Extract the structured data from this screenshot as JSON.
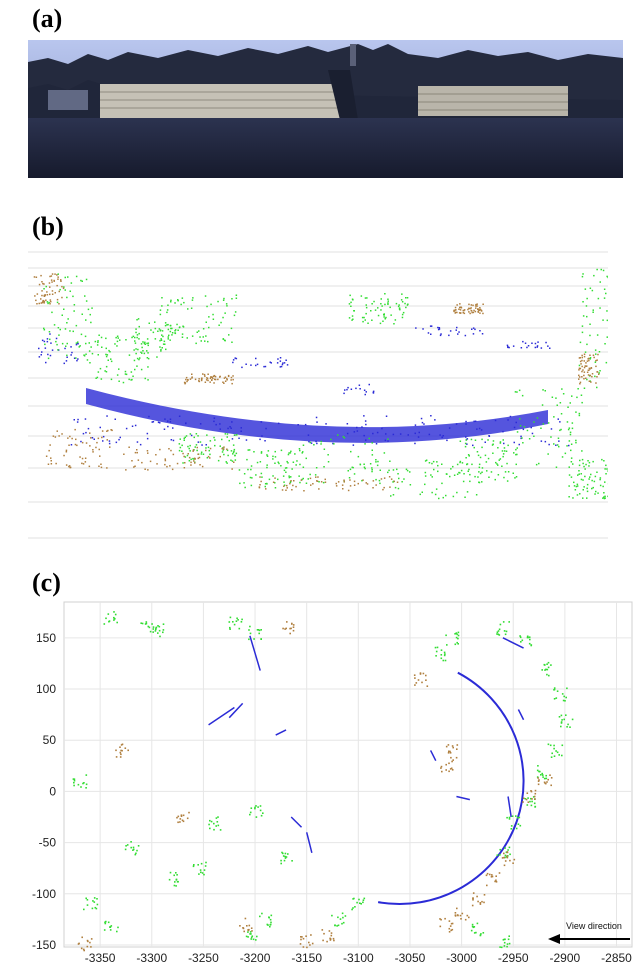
{
  "panels": {
    "a": {
      "label": "(a)"
    },
    "b": {
      "label": "(b)"
    },
    "c": {
      "label": "(c)"
    }
  },
  "colors": {
    "building": "#2b2bd6",
    "vegetation": "#33dd33",
    "ground": "#b08040",
    "sky": "#a8b8e4",
    "treeline": "#1e2438",
    "building_facade": "#c8c4b8"
  },
  "chart_data": {
    "type": "scatter",
    "title": "",
    "xlabel": "",
    "ylabel": "",
    "xlim": [
      -3385,
      -2835
    ],
    "ylim": [
      -152,
      185
    ],
    "xticks": [
      -3350,
      -3300,
      -3250,
      -3200,
      -3150,
      -3100,
      -3050,
      -3000,
      -2950,
      -2900,
      -2850
    ],
    "yticks": [
      150,
      100,
      50,
      0,
      -50,
      -100,
      -150
    ],
    "grid": true,
    "annotation": "View direction",
    "series": [
      {
        "color": "#2b2bd6",
        "arc": {
          "center": [
            -3060,
            10
          ],
          "radius": 120,
          "from_deg": 62,
          "to_deg": -100
        },
        "segments": [
          [
            [
              -3205,
              152
            ],
            [
              -3195,
              118
            ]
          ],
          [
            [
              -3245,
              65
            ],
            [
              -3220,
              82
            ]
          ],
          [
            [
              -3225,
              72
            ],
            [
              -3212,
              86
            ]
          ],
          [
            [
              -3180,
              55
            ],
            [
              -3170,
              60
            ]
          ],
          [
            [
              -3005,
              -5
            ],
            [
              -2992,
              -8
            ]
          ],
          [
            [
              -3165,
              -25
            ],
            [
              -3155,
              -35
            ]
          ],
          [
            [
              -3150,
              -40
            ],
            [
              -3145,
              -60
            ]
          ],
          [
            [
              -3030,
              40
            ],
            [
              -3025,
              30
            ]
          ],
          [
            [
              -2955,
              -5
            ],
            [
              -2952,
              -25
            ]
          ],
          [
            [
              -2945,
              80
            ],
            [
              -2940,
              70
            ]
          ],
          [
            [
              -2960,
              150
            ],
            [
              -2940,
              140
            ]
          ]
        ]
      },
      {
        "color": "#33dd33",
        "clusters": [
          [
            -3340,
            170
          ],
          [
            -3305,
            162
          ],
          [
            -3295,
            158
          ],
          [
            -3220,
            165
          ],
          [
            -3200,
            155
          ],
          [
            -2960,
            160
          ],
          [
            -2940,
            150
          ],
          [
            -2920,
            120
          ],
          [
            -2905,
            95
          ],
          [
            -2900,
            70
          ],
          [
            -2910,
            40
          ],
          [
            -2925,
            20
          ],
          [
            -2935,
            -10
          ],
          [
            -2950,
            -30
          ],
          [
            -2960,
            -60
          ],
          [
            -3010,
            150
          ],
          [
            -3020,
            135
          ],
          [
            -3100,
            -110
          ],
          [
            -3120,
            -125
          ],
          [
            -3190,
            -125
          ],
          [
            -3205,
            -140
          ],
          [
            -3170,
            -65
          ],
          [
            -3255,
            -75
          ],
          [
            -3280,
            -85
          ],
          [
            -3320,
            -55
          ],
          [
            -3340,
            -130
          ],
          [
            -3360,
            -110
          ],
          [
            -3240,
            -30
          ],
          [
            -3200,
            -20
          ],
          [
            -2985,
            -135
          ],
          [
            -2960,
            -145
          ],
          [
            -3370,
            10
          ]
        ]
      },
      {
        "color": "#b08040",
        "clusters": [
          [
            -2955,
            -65
          ],
          [
            -2970,
            -85
          ],
          [
            -2985,
            -105
          ],
          [
            -3000,
            -120
          ],
          [
            -3015,
            -130
          ],
          [
            -2920,
            10
          ],
          [
            -2935,
            -5
          ],
          [
            -3010,
            40
          ],
          [
            -3015,
            25
          ],
          [
            -3130,
            -140
          ],
          [
            -3150,
            -145
          ],
          [
            -3365,
            -148
          ],
          [
            -3210,
            -130
          ],
          [
            -3040,
            110
          ],
          [
            -3170,
            160
          ],
          [
            -3270,
            -25
          ],
          [
            -3330,
            40
          ]
        ]
      }
    ]
  }
}
